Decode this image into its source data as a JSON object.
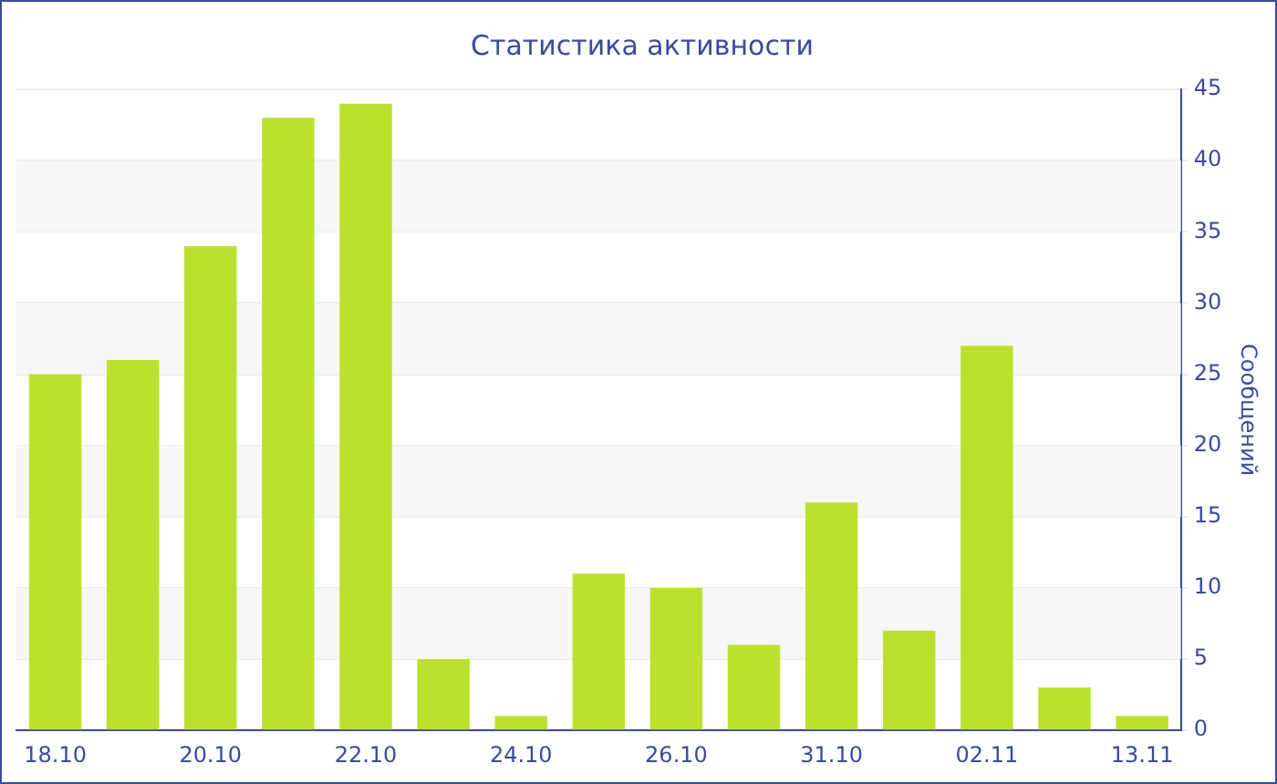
{
  "chart_data": {
    "type": "bar",
    "title": "Статистика активности",
    "ylabel": "Сообщений",
    "categories": [
      "18.10",
      null,
      "20.10",
      null,
      "22.10",
      null,
      "24.10",
      null,
      "26.10",
      null,
      "31.10",
      null,
      "02.11",
      null,
      "13.11"
    ],
    "values": [
      25,
      26,
      34,
      43,
      44,
      5,
      1,
      11,
      10,
      6,
      16,
      7,
      27,
      3,
      1
    ],
    "color": "#bce12d",
    "ylim": [
      0,
      45
    ],
    "yticks": [
      0,
      5,
      10,
      15,
      20,
      25,
      30,
      35,
      40,
      45
    ],
    "grid": "y"
  }
}
